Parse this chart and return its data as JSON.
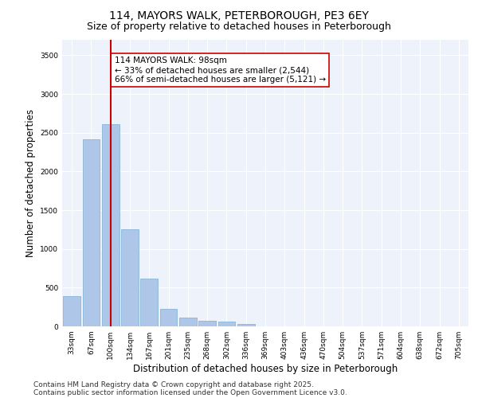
{
  "title": "114, MAYORS WALK, PETERBOROUGH, PE3 6EY",
  "subtitle": "Size of property relative to detached houses in Peterborough",
  "xlabel": "Distribution of detached houses by size in Peterborough",
  "ylabel": "Number of detached properties",
  "categories": [
    "33sqm",
    "67sqm",
    "100sqm",
    "134sqm",
    "167sqm",
    "201sqm",
    "235sqm",
    "268sqm",
    "302sqm",
    "336sqm",
    "369sqm",
    "403sqm",
    "436sqm",
    "470sqm",
    "504sqm",
    "537sqm",
    "571sqm",
    "604sqm",
    "638sqm",
    "672sqm",
    "705sqm"
  ],
  "values": [
    390,
    2420,
    2610,
    1250,
    620,
    230,
    110,
    75,
    60,
    30,
    0,
    0,
    0,
    0,
    0,
    0,
    0,
    0,
    0,
    0,
    0
  ],
  "bar_color": "#aec6e8",
  "bar_edge_color": "#7aadd4",
  "reference_line_x": 2,
  "reference_line_color": "#cc0000",
  "annotation_text": "114 MAYORS WALK: 98sqm\n← 33% of detached houses are smaller (2,544)\n66% of semi-detached houses are larger (5,121) →",
  "annotation_box_color": "#ffffff",
  "annotation_box_edge_color": "#cc0000",
  "ylim": [
    0,
    3700
  ],
  "yticks": [
    0,
    500,
    1000,
    1500,
    2000,
    2500,
    3000,
    3500
  ],
  "footer_line1": "Contains HM Land Registry data © Crown copyright and database right 2025.",
  "footer_line2": "Contains public sector information licensed under the Open Government Licence v3.0.",
  "bg_color": "#eef3fb",
  "fig_bg_color": "#ffffff",
  "grid_color": "#ffffff",
  "title_fontsize": 10,
  "subtitle_fontsize": 9,
  "tick_fontsize": 6.5,
  "label_fontsize": 8.5,
  "footer_fontsize": 6.5,
  "annotation_fontsize": 7.5
}
